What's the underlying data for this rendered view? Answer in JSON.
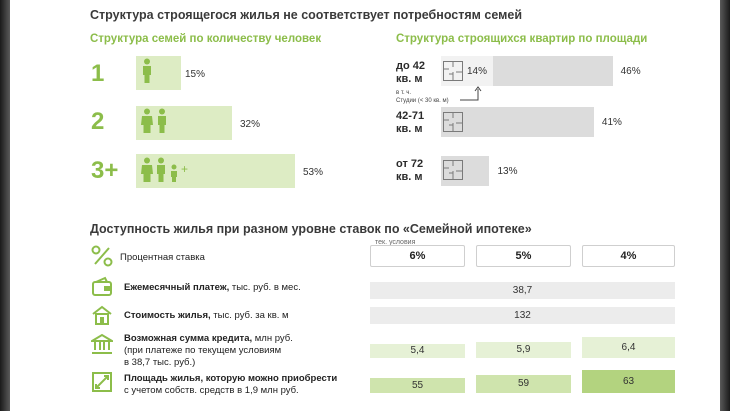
{
  "title": "Структура строящегося жилья не соответствует потребностям семей",
  "families": {
    "title": "Структура семей по количеству человек",
    "rows": [
      {
        "label": "1",
        "value": 15,
        "pct_label": "15%"
      },
      {
        "label": "2",
        "value": 32,
        "pct_label": "32%"
      },
      {
        "label": "3+",
        "value": 53,
        "pct_label": "53%"
      }
    ],
    "plus_sign": "+"
  },
  "apartments": {
    "title": "Структура строящихся квартир по площади",
    "rows": [
      {
        "label_line1": "до 42",
        "label_line2": "кв. м",
        "value": 46,
        "pct_label": "46%",
        "inner_value": 14,
        "inner_label": "14%"
      },
      {
        "label_line1": "42-71",
        "label_line2": "кв. м",
        "value": 41,
        "pct_label": "41%"
      },
      {
        "label_line1": "от 72",
        "label_line2": "кв. м",
        "value": 13,
        "pct_label": "13%"
      }
    ],
    "note_line1": "в т. ч.",
    "note_line2": "Студии (< 30 кв. м)"
  },
  "mortgage": {
    "title": "Доступность жилья при разном уровне ставок по «Семейной ипотеке»",
    "rate_label": "Процентная ставка",
    "current_note": "тек. условия",
    "rates": [
      "6%",
      "5%",
      "4%"
    ],
    "rows": {
      "payment": {
        "bold": "Ежемесячный платеж,",
        "rest": " тыс. руб. в мес.",
        "value": "38,7"
      },
      "price": {
        "bold": "Стоимость жилья,",
        "rest": " тыс. руб. за кв. м",
        "value": "132"
      },
      "credit": {
        "bold": "Возможная сумма кредита,",
        "rest": " млн руб.",
        "line2": "(при платеже по текущем условиям",
        "line3": "в 38,7 тыс. руб.)",
        "values": [
          "5,4",
          "5,9",
          "6,4"
        ]
      },
      "area": {
        "bold": "Площадь жилья, которую можно приобрести",
        "line2": "с учетом собств. средств в 1,9 млн руб.",
        "values": [
          "55",
          "59",
          "63"
        ]
      }
    }
  },
  "colors": {
    "accent": "#8cbd4a",
    "light_green": "#ddecc4",
    "gray": "#dcdcdc"
  },
  "chart_data": [
    {
      "type": "bar",
      "title": "Структура семей по количеству человек",
      "categories": [
        "1",
        "2",
        "3+"
      ],
      "values": [
        15,
        32,
        53
      ],
      "unit": "%"
    },
    {
      "type": "bar",
      "title": "Структура строящихся квартир по площади",
      "categories": [
        "до 42 кв. м",
        "42-71 кв. м",
        "от 72 кв. м"
      ],
      "values": [
        46,
        41,
        13
      ],
      "sub_values": {
        "до 42 кв. м": 14
      },
      "unit": "%"
    },
    {
      "type": "table",
      "title": "Доступность жилья при разном уровне ставок по «Семейной ипотеке»",
      "columns": [
        "6%",
        "5%",
        "4%"
      ],
      "rows": [
        {
          "name": "Ежемесячный платеж, тыс. руб. в мес.",
          "values": [
            "38,7",
            "38,7",
            "38,7"
          ]
        },
        {
          "name": "Стоимость жилья, тыс. руб. за кв. м",
          "values": [
            "132",
            "132",
            "132"
          ]
        },
        {
          "name": "Возможная сумма кредита, млн руб.",
          "values": [
            5.4,
            5.9,
            6.4
          ]
        },
        {
          "name": "Площадь жилья, которую можно приобрести",
          "values": [
            55,
            59,
            63
          ]
        }
      ]
    }
  ]
}
